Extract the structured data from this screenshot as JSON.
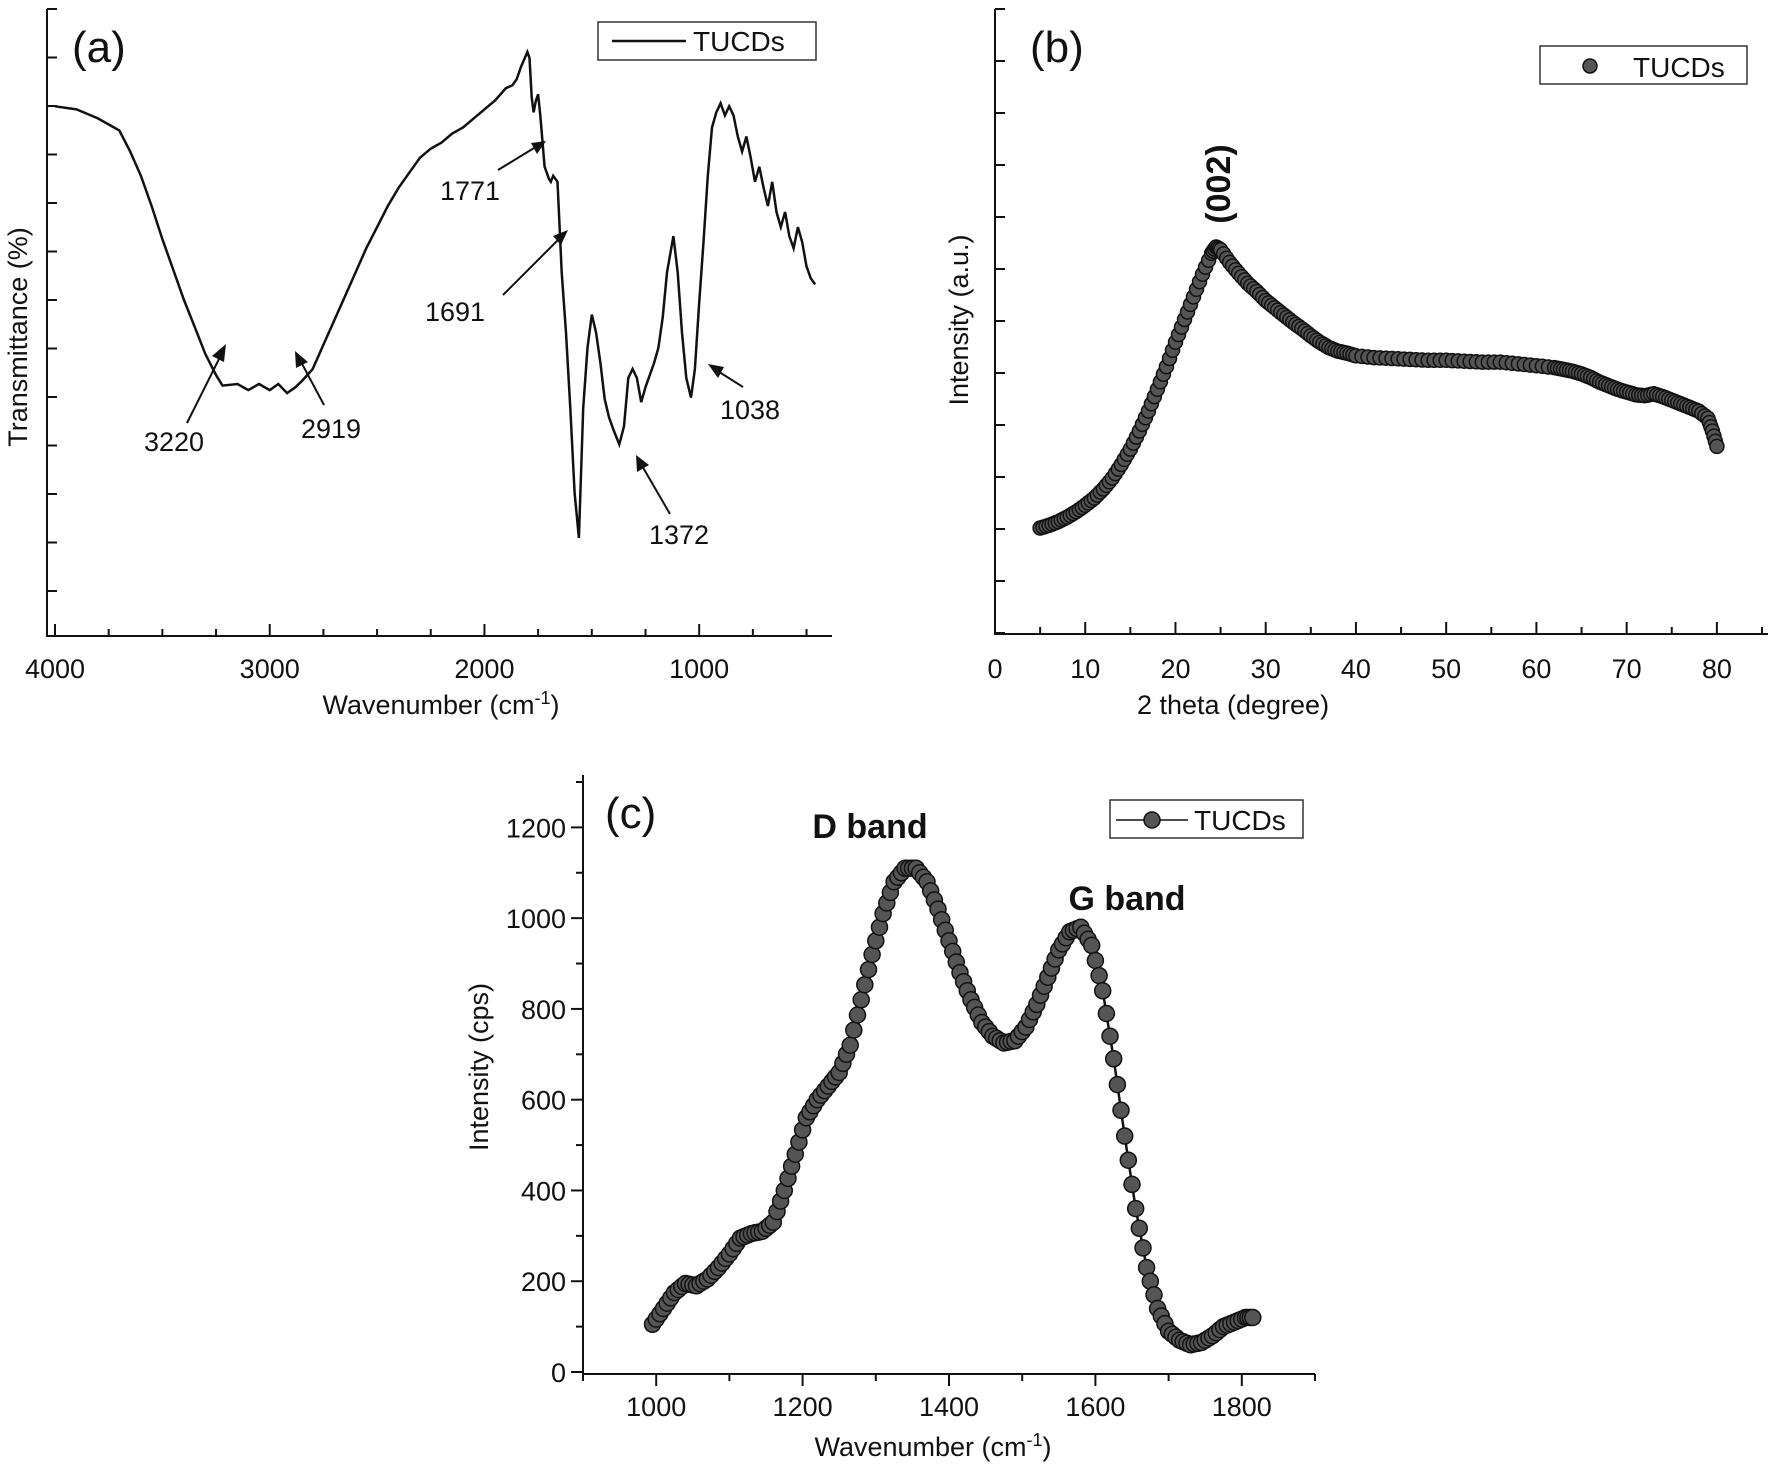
{
  "chart_data": [
    {
      "id": "a",
      "type": "line",
      "panel_label": "(a)",
      "xlabel": "Wavenumber (cm",
      "xlabel_sup": "-1",
      "xlabel_close": ")",
      "ylabel": "Transmittance (%)",
      "xlim": [
        4000,
        400
      ],
      "x_ticks": [
        4000,
        3000,
        2000,
        1000
      ],
      "y_ticks_labeled": false,
      "grid": false,
      "legend": {
        "position": "top-right",
        "style": "line",
        "entries": [
          "TUCDs"
        ]
      },
      "series": [
        {
          "name": "TUCDs",
          "x": [
            4000,
            3900,
            3800,
            3700,
            3650,
            3600,
            3550,
            3500,
            3450,
            3400,
            3350,
            3300,
            3250,
            3220,
            3150,
            3100,
            3050,
            3000,
            2960,
            2919,
            2880,
            2850,
            2800,
            2750,
            2700,
            2650,
            2600,
            2550,
            2500,
            2450,
            2400,
            2350,
            2300,
            2250,
            2200,
            2150,
            2100,
            2050,
            2000,
            1950,
            1900,
            1870,
            1850,
            1830,
            1800,
            1790,
            1780,
            1771,
            1760,
            1750,
            1740,
            1720,
            1700,
            1691,
            1680,
            1660,
            1640,
            1620,
            1600,
            1580,
            1560,
            1540,
            1520,
            1500,
            1480,
            1460,
            1440,
            1420,
            1400,
            1372,
            1350,
            1330,
            1310,
            1290,
            1270,
            1250,
            1230,
            1210,
            1190,
            1170,
            1150,
            1120,
            1100,
            1080,
            1060,
            1038,
            1020,
            1000,
            980,
            960,
            940,
            920,
            900,
            880,
            860,
            840,
            820,
            800,
            780,
            760,
            740,
            720,
            700,
            680,
            660,
            640,
            620,
            600,
            580,
            560,
            540,
            520,
            500,
            480,
            460
          ],
          "y": [
            95,
            94,
            91,
            87,
            80,
            72,
            62,
            51,
            41,
            31,
            22,
            13,
            6,
            2.5,
            3,
            1,
            3,
            1,
            3,
            0,
            2,
            4,
            8,
            16,
            24,
            32,
            40,
            48,
            55,
            62,
            68,
            73,
            78,
            81,
            83,
            86,
            88,
            91,
            94,
            97,
            101,
            102,
            104,
            108,
            113,
            111,
            98,
            93,
            97,
            99,
            92,
            75,
            71,
            70,
            72,
            70,
            40,
            20,
            -5,
            -33,
            -48,
            -5,
            15,
            26,
            20,
            10,
            -2,
            -8,
            -12,
            -17,
            -11,
            5,
            8,
            5,
            -3,
            2,
            6,
            10,
            15,
            25,
            40,
            52,
            40,
            20,
            5,
            -1.5,
            8,
            30,
            50,
            72,
            88,
            93,
            96,
            92,
            95,
            92,
            85,
            80,
            85,
            78,
            70,
            75,
            68,
            62,
            70,
            60,
            55,
            60,
            52,
            48,
            55,
            50,
            42,
            38,
            36
          ]
        }
      ],
      "annotations": [
        "3220",
        "2919",
        "1771",
        "1691",
        "1372",
        "1038"
      ]
    },
    {
      "id": "b",
      "type": "scatter",
      "panel_label": "(b)",
      "xlabel": "2 theta (degree)",
      "ylabel": "Intensity (a.u.)",
      "xlim": [
        0,
        85
      ],
      "x_ticks": [
        0,
        10,
        20,
        30,
        40,
        50,
        60,
        70,
        80
      ],
      "y_ticks_labeled": false,
      "grid": false,
      "legend": {
        "position": "top-right",
        "style": "marker",
        "entries": [
          "TUCDs"
        ]
      },
      "series": [
        {
          "name": "TUCDs",
          "x": [
            5,
            6,
            7,
            8,
            9,
            10,
            11,
            12,
            13,
            14,
            15,
            16,
            17,
            18,
            19,
            20,
            21,
            22,
            23,
            24,
            24.5,
            25,
            26,
            27,
            28,
            29,
            30,
            31,
            32,
            33,
            34,
            35,
            36,
            37,
            38,
            39,
            40,
            42,
            44,
            46,
            48,
            50,
            52,
            54,
            56,
            58,
            60,
            62,
            63,
            64,
            65,
            66,
            67,
            68,
            69,
            70,
            71,
            72,
            73,
            74,
            75,
            76,
            77,
            78,
            79,
            79.5,
            80
          ],
          "y": [
            0.5,
            0.8,
            1.2,
            1.7,
            2.3,
            3.0,
            3.8,
            4.8,
            6.0,
            7.5,
            9.2,
            11.2,
            13.4,
            15.8,
            18.3,
            21.0,
            23.5,
            26.0,
            28.5,
            30.8,
            31.5,
            31.2,
            29.8,
            28.6,
            27.5,
            26.6,
            25.6,
            24.8,
            24.0,
            23.2,
            22.5,
            21.7,
            21.0,
            20.4,
            20.0,
            19.8,
            19.5,
            19.3,
            19.2,
            19.1,
            19.0,
            19.0,
            18.9,
            18.8,
            18.8,
            18.6,
            18.4,
            18.2,
            18.0,
            17.8,
            17.5,
            17.1,
            16.6,
            16.2,
            15.8,
            15.5,
            15.2,
            15.1,
            15.3,
            15.0,
            14.6,
            14.2,
            13.8,
            13.4,
            12.6,
            11.2,
            9.5
          ]
        }
      ],
      "annotations": [
        "(002)"
      ]
    },
    {
      "id": "c",
      "type": "line",
      "panel_label": "(c)",
      "xlabel": "Wavenumber (cm",
      "xlabel_sup": "-1",
      "xlabel_close": ")",
      "ylabel": "Intensity (cps)",
      "xlim": [
        900,
        1900
      ],
      "ylim": [
        0,
        1300
      ],
      "x_ticks": [
        1000,
        1200,
        1400,
        1600,
        1800
      ],
      "y_ticks": [
        0,
        200,
        400,
        600,
        800,
        1000,
        1200
      ],
      "grid": false,
      "legend": {
        "position": "top-right",
        "style": "line-marker",
        "entries": [
          "TUCDs"
        ]
      },
      "series": [
        {
          "name": "TUCDs",
          "x": [
            995,
            1010,
            1025,
            1040,
            1055,
            1070,
            1085,
            1100,
            1115,
            1130,
            1145,
            1160,
            1175,
            1190,
            1205,
            1220,
            1235,
            1250,
            1265,
            1280,
            1295,
            1310,
            1325,
            1340,
            1355,
            1370,
            1385,
            1400,
            1415,
            1430,
            1445,
            1460,
            1475,
            1490,
            1505,
            1520,
            1535,
            1550,
            1565,
            1580,
            1595,
            1610,
            1625,
            1640,
            1655,
            1670,
            1685,
            1700,
            1715,
            1730,
            1745,
            1760,
            1775,
            1790,
            1805,
            1815
          ],
          "y": [
            105,
            140,
            175,
            195,
            190,
            205,
            230,
            260,
            295,
            305,
            310,
            330,
            400,
            480,
            560,
            600,
            630,
            660,
            720,
            820,
            920,
            1010,
            1080,
            1110,
            1110,
            1080,
            1020,
            950,
            880,
            820,
            770,
            740,
            725,
            730,
            760,
            810,
            870,
            930,
            970,
            980,
            940,
            840,
            690,
            520,
            360,
            230,
            140,
            90,
            70,
            60,
            65,
            80,
            100,
            110,
            120,
            120
          ]
        }
      ],
      "annotations": [
        "D band",
        "G band"
      ]
    }
  ]
}
